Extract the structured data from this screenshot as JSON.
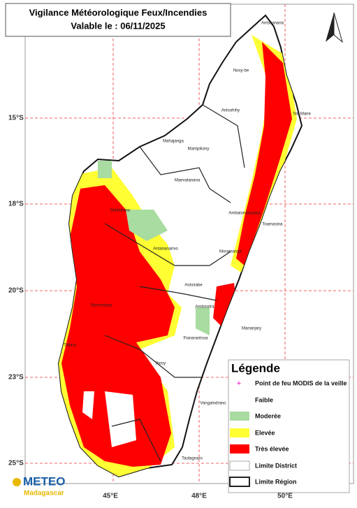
{
  "title": "Vigilance Météorologique Feux/Incendies",
  "subtitle": "Valable le : 06/11/2025",
  "lat_labels": [
    "15°S",
    "18°S",
    "20°S",
    "23°S",
    "25°S"
  ],
  "lon_labels": [
    "45°E",
    "48°E",
    "50°E"
  ],
  "places": [
    "Antsiranana",
    "Nosy-be",
    "Antsohihy",
    "Ste Marie",
    "Mahajanga",
    "Mampikony",
    "Maevatanana",
    "Ambatondrazaka",
    "Maintirano",
    "Toamasina",
    "Antananarivo",
    "Moramanga",
    "Antsirabe",
    "Ambositra",
    "Morondava",
    "Mananjary",
    "Fianarantsoa",
    "Toliara",
    "Ihosy",
    "Vangaindrano",
    "Taolagnaro"
  ],
  "legend": {
    "title": "Légende",
    "items": [
      "Point de feu MODIS de la veille",
      "Faible",
      "Moderée",
      "Elevée",
      "Très élevée",
      "Limite District",
      "Limite Région"
    ]
  },
  "logo": {
    "name": "METEO",
    "country": "Madagascar"
  }
}
